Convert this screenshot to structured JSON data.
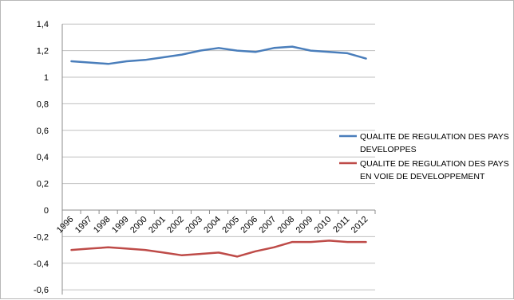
{
  "chart_data": {
    "type": "line",
    "title": "",
    "xlabel": "",
    "ylabel": "",
    "x": [
      "1996",
      "1997",
      "1998",
      "1999",
      "2000",
      "2001",
      "2002",
      "2003",
      "2004",
      "2005",
      "2006",
      "2007",
      "2008",
      "2009",
      "2010",
      "2011",
      "2012"
    ],
    "ylim": [
      -0.6,
      1.4
    ],
    "yticks": [
      -0.6,
      -0.4,
      -0.2,
      0,
      0.2,
      0.4,
      0.6,
      0.8,
      1,
      1.2,
      1.4
    ],
    "ytick_labels": [
      "-0,6",
      "-0,4",
      "-0,2",
      "0",
      "0,2",
      "0,4",
      "0,6",
      "0,8",
      "1",
      "1,2",
      "1,4"
    ],
    "grid": "horizontal",
    "legend_position": "right",
    "series": [
      {
        "name": "QUALITE DE REGULATION  DES PAYS DEVELOPPES",
        "legend_lines": [
          "QUALITE DE REGULATION  DES PAYS",
          "DEVELOPPES"
        ],
        "color": "#4a7ebb",
        "values": [
          1.12,
          1.11,
          1.1,
          1.12,
          1.13,
          1.15,
          1.17,
          1.2,
          1.22,
          1.2,
          1.19,
          1.22,
          1.23,
          1.2,
          1.19,
          1.18,
          1.14
        ]
      },
      {
        "name": "QUALITE DE REGULATION DES PAYS EN VOIE DE DEVELOPPEMENT",
        "legend_lines": [
          "QUALITE DE REGULATION DES PAYS",
          "EN VOIE DE DEVELOPPEMENT"
        ],
        "color": "#be4b48",
        "values": [
          -0.3,
          -0.29,
          -0.28,
          -0.29,
          -0.3,
          -0.32,
          -0.34,
          -0.33,
          -0.32,
          -0.35,
          -0.31,
          -0.28,
          -0.24,
          -0.24,
          -0.23,
          -0.24,
          -0.24
        ]
      }
    ]
  }
}
